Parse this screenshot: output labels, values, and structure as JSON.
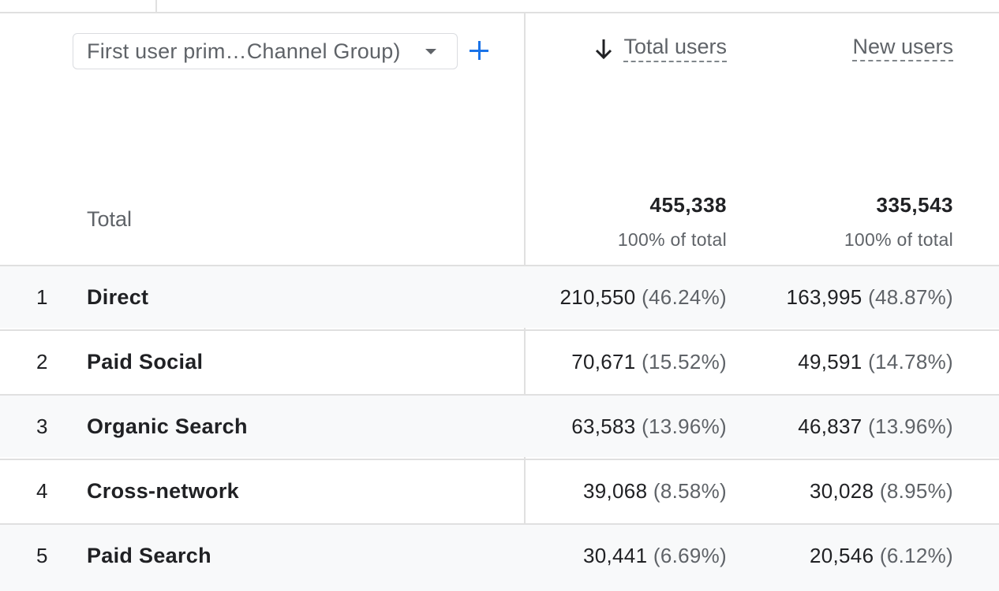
{
  "dimension": {
    "selected": "First user prim…Channel Group)"
  },
  "columns": {
    "total_users": "Total users",
    "new_users": "New users"
  },
  "totals": {
    "label": "Total",
    "total_users": "455,338",
    "total_users_sub": "100% of total",
    "new_users": "335,543",
    "new_users_sub": "100% of total"
  },
  "rows": [
    {
      "index": "1",
      "name": "Direct",
      "total_users": "210,550",
      "total_pct": "(46.24%)",
      "new_users": "163,995",
      "new_pct": "(48.87%)"
    },
    {
      "index": "2",
      "name": "Paid Social",
      "total_users": "70,671",
      "total_pct": "(15.52%)",
      "new_users": "49,591",
      "new_pct": "(14.78%)"
    },
    {
      "index": "3",
      "name": "Organic Search",
      "total_users": "63,583",
      "total_pct": "(13.96%)",
      "new_users": "46,837",
      "new_pct": "(13.96%)"
    },
    {
      "index": "4",
      "name": "Cross-network",
      "total_users": "39,068",
      "total_pct": "(8.58%)",
      "new_users": "30,028",
      "new_pct": "(8.95%)"
    },
    {
      "index": "5",
      "name": "Paid Search",
      "total_users": "30,441",
      "total_pct": "(6.69%)",
      "new_users": "20,546",
      "new_pct": "(6.12%)"
    }
  ],
  "icons": {
    "sort": "arrow-down-icon",
    "add": "plus-icon",
    "dropdown": "caret-down-icon"
  },
  "colors": {
    "accent": "#1a73e8",
    "row_alt": "#f8f9fa",
    "divider": "#e0e0e0"
  }
}
